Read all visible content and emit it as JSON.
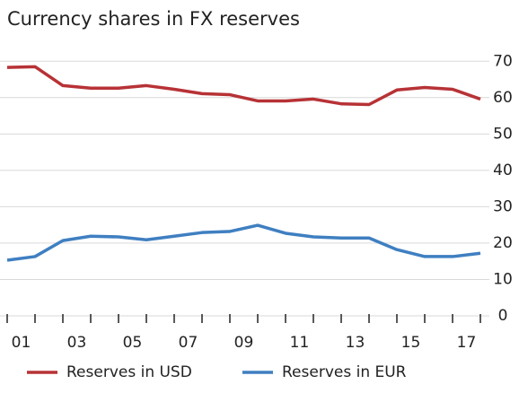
{
  "chart_data": {
    "type": "line",
    "title": "Currency shares in FX reserves",
    "x": [
      2000,
      2001,
      2002,
      2003,
      2004,
      2005,
      2006,
      2007,
      2008,
      2009,
      2010,
      2011,
      2012,
      2013,
      2014,
      2015,
      2016,
      2017
    ],
    "xlim": [
      2000,
      2017
    ],
    "xticks": [
      {
        "value": 2000.5,
        "label": "01"
      },
      {
        "value": 2002.5,
        "label": "03"
      },
      {
        "value": 2004.5,
        "label": "05"
      },
      {
        "value": 2006.5,
        "label": "07"
      },
      {
        "value": 2008.5,
        "label": "09"
      },
      {
        "value": 2010.5,
        "label": "11"
      },
      {
        "value": 2012.5,
        "label": "13"
      },
      {
        "value": 2014.5,
        "label": "15"
      },
      {
        "value": 2016.5,
        "label": "17"
      }
    ],
    "ylim": [
      0,
      75
    ],
    "yticks": [
      0,
      10,
      20,
      30,
      40,
      50,
      60,
      70
    ],
    "grid": true,
    "y_axis_side": "right",
    "legend": "bottom",
    "series": [
      {
        "name": "Reserves in USD",
        "color": "#b73236",
        "values": [
          68.3,
          68.5,
          63.3,
          62.6,
          62.6,
          63.3,
          62.3,
          61.1,
          60.8,
          59.1,
          59.1,
          59.6,
          58.3,
          58.1,
          62.1,
          62.8,
          62.3,
          59.6
        ]
      },
      {
        "name": "Reserves in EUR",
        "color": "#3f7fc1",
        "values": [
          15.3,
          16.3,
          20.7,
          21.9,
          21.7,
          20.9,
          21.9,
          22.9,
          23.2,
          24.9,
          22.7,
          21.7,
          21.4,
          21.4,
          18.2,
          16.3,
          16.3,
          17.2
        ]
      }
    ]
  }
}
